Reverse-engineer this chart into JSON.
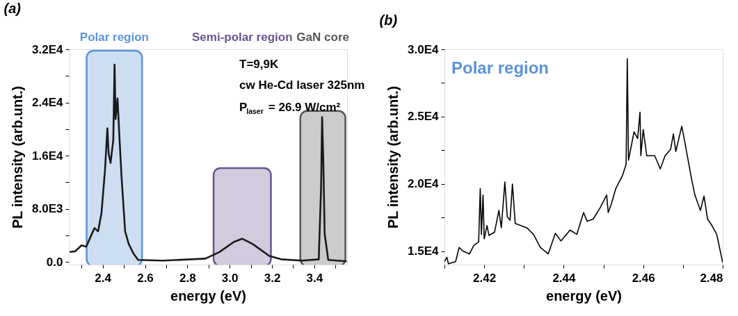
{
  "chart_data": [
    {
      "type": "line",
      "title": "(a)",
      "xlabel": "energy (eV)",
      "ylabel": "PL intensity (arb.unt.)",
      "xlim": [
        2.24,
        3.555
      ],
      "ylim": [
        -400,
        32000
      ],
      "xticks": [
        {
          "value": 2.3,
          "label": null
        },
        2.4,
        {
          "value": 2.5,
          "label": null
        },
        2.6,
        {
          "value": 2.7,
          "label": null
        },
        2.8,
        {
          "value": 2.9,
          "label": null
        },
        {
          "value": 3.0,
          "label": "3.0"
        },
        {
          "value": 3.1,
          "label": null
        },
        3.2,
        {
          "value": 3.3,
          "label": null
        },
        3.4,
        {
          "value": 3.5,
          "label": null
        }
      ],
      "yticks": [
        {
          "value": 0,
          "label": "0.0"
        },
        {
          "value": 4000,
          "label": null
        },
        {
          "value": 8000,
          "label": "8.0E3"
        },
        {
          "value": 12000,
          "label": null
        },
        {
          "value": 16000,
          "label": "1.6E4"
        },
        {
          "value": 20000,
          "label": null
        },
        {
          "value": 24000,
          "label": "2.4E4"
        },
        {
          "value": 28000,
          "label": null
        },
        {
          "value": 32000,
          "label": "3.2E4"
        }
      ],
      "x": [
        2.244,
        2.27,
        2.3,
        2.322,
        2.361,
        2.378,
        2.394,
        2.411,
        2.422,
        2.428,
        2.437,
        2.45,
        2.456,
        2.461,
        2.47,
        2.478,
        2.489,
        2.506,
        2.523,
        2.545,
        2.567,
        2.685,
        2.885,
        2.952,
        3.019,
        3.059,
        3.109,
        3.187,
        3.243,
        3.343,
        3.421,
        3.432,
        3.437,
        3.443,
        3.449,
        3.466,
        3.553
      ],
      "series": [
        {
          "color": "#1a1a1a",
          "values": [
            1500,
            1600,
            2500,
            2300,
            5100,
            4600,
            7300,
            13900,
            20100,
            16300,
            14900,
            18400,
            29700,
            21500,
            24600,
            19400,
            12800,
            4600,
            2700,
            1300,
            300,
            200,
            500,
            1500,
            3000,
            3500,
            2700,
            900,
            400,
            200,
            400,
            11100,
            21800,
            14600,
            4200,
            300,
            100
          ]
        }
      ],
      "bands": [
        {
          "axis": "x",
          "from": 2.324,
          "to": 2.586,
          "label": "Polar region",
          "color": "#5b93d8"
        },
        {
          "axis": "x",
          "from": 2.924,
          "to": 3.195,
          "label": "Semi-polar region",
          "color": "#6a5490"
        },
        {
          "axis": "x",
          "from": 3.334,
          "to": 3.547,
          "label": "GaN core",
          "color": "#555555"
        }
      ],
      "annotations": [
        "T=9,9K",
        "cw He-Cd laser 325nm",
        "P$_{laser}$ = 26.9 W/cm²"
      ],
      "grid": false,
      "marker": "none",
      "line_style": "solid"
    },
    {
      "type": "line",
      "title": "(b)",
      "xlabel": "energy (eV)",
      "ylabel": "PL intensity (arb.unt.)",
      "xlim": [
        2.41,
        2.48
      ],
      "ylim": [
        14000,
        30000
      ],
      "xticks": [
        {
          "value": 2.41,
          "label": null
        },
        2.42,
        {
          "value": 2.43,
          "label": null
        },
        2.44,
        {
          "value": 2.45,
          "label": null
        },
        2.46,
        {
          "value": 2.47,
          "label": null
        },
        2.48
      ],
      "yticks": [
        {
          "value": 15000,
          "label": "1.5E4"
        },
        {
          "value": 17500,
          "label": null
        },
        {
          "value": 20000,
          "label": "2.0E4"
        },
        {
          "value": 22500,
          "label": null
        },
        {
          "value": 25000,
          "label": "2.5E4"
        },
        {
          "value": 27500,
          "label": null
        },
        {
          "value": 30000,
          "label": "3.0E4"
        }
      ],
      "x": [
        2.41,
        2.4106,
        2.411,
        2.4128,
        2.4137,
        2.4145,
        2.4163,
        2.4174,
        2.4186,
        2.419,
        2.4193,
        2.4197,
        2.42,
        2.4207,
        2.4212,
        2.4226,
        2.4237,
        2.4243,
        2.4252,
        2.4258,
        2.4265,
        2.4271,
        2.4278,
        2.4307,
        2.4324,
        2.4341,
        2.4361,
        2.4379,
        2.4393,
        2.4416,
        2.4433,
        2.445,
        2.4459,
        2.4474,
        2.4491,
        2.4508,
        2.4512,
        2.452,
        2.4531,
        2.4548,
        2.4557,
        2.456,
        2.4563,
        2.4577,
        2.4586,
        2.4592,
        2.4594,
        2.46,
        2.4609,
        2.4629,
        2.4643,
        2.4655,
        2.4669,
        2.4676,
        2.4682,
        2.4697,
        2.4704,
        2.4721,
        2.473,
        2.4744,
        2.4753,
        2.4762,
        2.4773,
        2.4785,
        2.48
      ],
      "series": [
        {
          "color": "#000000",
          "values": [
            14220,
            14550,
            14060,
            14220,
            15280,
            15030,
            14790,
            15440,
            15680,
            19650,
            16250,
            19170,
            15920,
            16900,
            16170,
            16410,
            18030,
            16740,
            20140,
            17550,
            17300,
            19980,
            17060,
            16740,
            16250,
            15280,
            14790,
            16330,
            15760,
            16570,
            16250,
            17870,
            17220,
            17380,
            18190,
            19170,
            17870,
            18520,
            19650,
            20630,
            21440,
            29300,
            21760,
            23870,
            23380,
            25330,
            22090,
            24030,
            22090,
            22090,
            21110,
            22090,
            22570,
            23710,
            22410,
            24280,
            23220,
            20470,
            19170,
            18030,
            19090,
            17380,
            16900,
            16250,
            14140
          ]
        }
      ],
      "annotations": [
        "Polar region"
      ],
      "grid": false,
      "marker": "none",
      "line_style": "solid"
    }
  ]
}
